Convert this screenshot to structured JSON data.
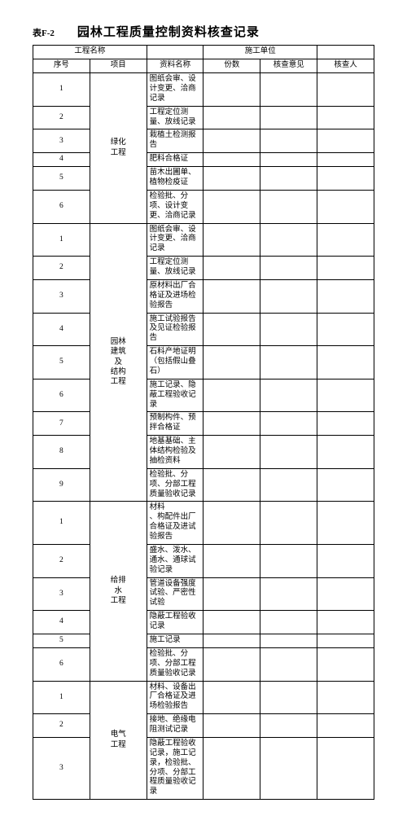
{
  "theme": {
    "background_color": "#ffffff",
    "border_color": "#000000",
    "text_color": "#000000",
    "font_family": "SimSun",
    "title_fontsize": 15,
    "body_fontsize": 9.5,
    "form_code_fontsize": 11
  },
  "header": {
    "form_code": "表F-2",
    "title": "园林工程质量控制资料核查记录"
  },
  "info_row": {
    "project_name_label": "工程名称",
    "project_name_value": "",
    "construction_unit_label": "施工单位",
    "construction_unit_value": ""
  },
  "columns": {
    "seq": "序号",
    "project": "项目",
    "doc_name": "资料名称",
    "copies": "份数",
    "opinion": "核查意见",
    "checker": "核查人"
  },
  "sections": [
    {
      "project_label": "绿化\n工程",
      "rows": [
        {
          "seq": "1",
          "name": "图纸会审、设计变更、洽商记录"
        },
        {
          "seq": "2",
          "name": "工程定位测量、放线记录"
        },
        {
          "seq": "3",
          "name": "栽植土检测报告"
        },
        {
          "seq": "4",
          "name": "肥料合格证"
        },
        {
          "seq": "5",
          "name": "苗木出圃单、植物检疫证"
        },
        {
          "seq": "6",
          "name": "检验批、分项、设计变更、洽商记录"
        }
      ]
    },
    {
      "project_label": "园林\n建筑\n及\n结构\n工程",
      "rows": [
        {
          "seq": "1",
          "name": "图纸会审、设计变更、洽商记录"
        },
        {
          "seq": "2",
          "name": "工程定位测量、放线记录"
        },
        {
          "seq": "3",
          "name": "原材料出厂合格证及进场检验报告"
        },
        {
          "seq": "4",
          "name": "施工试验报告及见证检验报告"
        },
        {
          "seq": "5",
          "name": "石料产地证明（包括假山叠石）"
        },
        {
          "seq": "6",
          "name": "施工记录、隐蔽工程验收记录"
        },
        {
          "seq": "7",
          "name": "预制构件、预拌合格证"
        },
        {
          "seq": "8",
          "name": "地基基础、主体结构检验及抽检资料"
        },
        {
          "seq": "9",
          "name": "检验批、分项、分部工程质量验收记录",
          "tall": true
        }
      ]
    },
    {
      "project_label": "给排\n水\n工程",
      "rows": [
        {
          "seq": "1",
          "name": "材料\n、构配件出厂合格证及进试验报告",
          "tall": true
        },
        {
          "seq": "2",
          "name": "盛水、泼水、通水、通球试验记录"
        },
        {
          "seq": "3",
          "name": "管道设备强度试验、严密性试验"
        },
        {
          "seq": "4",
          "name": "隐蔽工程验收记录"
        },
        {
          "seq": "5",
          "name": "施工记录"
        },
        {
          "seq": "6",
          "name": "检验批、分项、分部工程质量验收记录",
          "tall": true
        }
      ]
    },
    {
      "project_label": "电气\n工程",
      "rows": [
        {
          "seq": "1",
          "name": "材料、设备出厂合格证及进场检验报告",
          "tall": true
        },
        {
          "seq": "2",
          "name": "接地、绝缘电阻测试记录"
        },
        {
          "seq": "3",
          "name": "隐蔽工程验收记录，施工记录，检验批、\n分项、分部工程质量验收记录",
          "tall": true
        }
      ]
    }
  ]
}
